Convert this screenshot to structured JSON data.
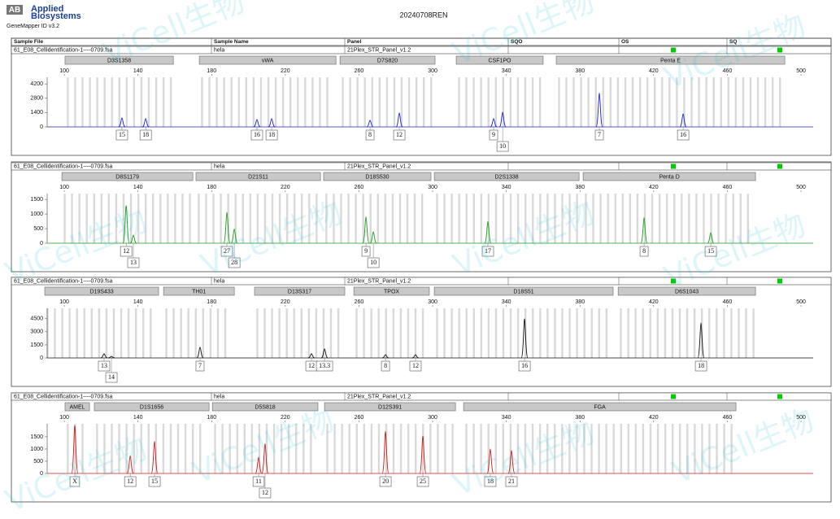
{
  "header": {
    "logo_mark": "AB",
    "brand": [
      "Applied",
      "Biosystems"
    ],
    "software": "GeneMapper ID v3.2",
    "title": "20240708REN",
    "columns": [
      "Sample File",
      "Sample Name",
      "Panel",
      "SQO",
      "OS",
      "SQ"
    ]
  },
  "watermark": "ViCell生物",
  "chart_data": [
    {
      "type": "electropherogram",
      "sample_file": "61_E08_Cellidentification-1----0709.fsa",
      "sample_name": "hela",
      "panel": "21Plex_STR_Panel_v1.2",
      "color": "#1c1cc8",
      "xlim": [
        90.7,
        506.6
      ],
      "xticks": [
        100,
        140,
        180,
        220,
        260,
        300,
        340,
        380,
        420,
        460,
        500
      ],
      "ylim": [
        0,
        4850
      ],
      "yticks": [
        0,
        1400,
        2800,
        4200
      ],
      "markers": [
        {
          "name": "D3S1358",
          "start": 100.4,
          "end": 159.2
        },
        {
          "name": "vWA",
          "start": 173.3,
          "end": 247.5
        },
        {
          "name": "D7S820",
          "start": 249.7,
          "end": 301.3
        },
        {
          "name": "CSF1PO",
          "start": 312.8,
          "end": 360
        },
        {
          "name": "Penta E",
          "start": 367.1,
          "end": 491.2
        }
      ],
      "sizes": [
        131.3,
        144.2,
        204.6,
        212.6,
        266,
        281.9,
        333.1,
        338,
        390.5,
        436
      ],
      "heights": [
        890,
        810,
        730,
        810,
        650,
        1370,
        810,
        1450,
        3310,
        1290
      ],
      "alleles": [
        "15",
        "18",
        "16",
        "18",
        "8",
        "12",
        "9",
        "10",
        "7",
        "16"
      ]
    },
    {
      "type": "electropherogram",
      "sample_file": "61_E08_Cellidentification-1----0709.fsa",
      "sample_name": "hela",
      "panel": "21Plex_STR_Panel_v1.2",
      "color": "#1a9a1a",
      "xlim": [
        90.7,
        506.6
      ],
      "xticks": [
        100,
        140,
        180,
        220,
        260,
        300,
        340,
        380,
        420,
        460,
        500
      ],
      "ylim": [
        0,
        1700
      ],
      "yticks": [
        0,
        500,
        1000,
        1500
      ],
      "markers": [
        {
          "name": "D8S1179",
          "start": 98.7,
          "end": 169.8
        },
        {
          "name": "D21S11",
          "start": 171.5,
          "end": 239.1
        },
        {
          "name": "D18S530",
          "start": 240.8,
          "end": 299.1
        },
        {
          "name": "D2S1338",
          "start": 300.9,
          "end": 379.5
        },
        {
          "name": "Penta D",
          "start": 381.7,
          "end": 475.3
        }
      ],
      "sizes": [
        133.6,
        137.5,
        188.3,
        192.3,
        263.8,
        267.8,
        330,
        414.8,
        451
      ],
      "heights": [
        1290,
        280,
        1060,
        490,
        905,
        390,
        750,
        880,
        360
      ],
      "alleles": [
        "12",
        "13",
        "27",
        "28",
        "9",
        "10",
        "17",
        "8",
        "15"
      ]
    },
    {
      "type": "electropherogram",
      "sample_file": "61_E08_Cellidentification-1----0709.fsa",
      "sample_name": "hela",
      "panel": "21Plex_STR_Panel_v1.2",
      "color": "#111111",
      "xlim": [
        90.7,
        506.6
      ],
      "xticks": [
        100,
        140,
        180,
        220,
        260,
        300,
        340,
        380,
        420,
        460,
        500
      ],
      "ylim": [
        0,
        5700
      ],
      "yticks": [
        0,
        1500,
        3000,
        4500
      ],
      "markers": [
        {
          "name": "D19S433",
          "start": 89.4,
          "end": 151.2
        },
        {
          "name": "TH01",
          "start": 153.9,
          "end": 192.3
        },
        {
          "name": "D13S317",
          "start": 203.3,
          "end": 252.3
        },
        {
          "name": "TPOX",
          "start": 257.2,
          "end": 298.2
        },
        {
          "name": "D18S51",
          "start": 300.9,
          "end": 398
        },
        {
          "name": "D6S1043",
          "start": 400.7,
          "end": 475.3
        }
      ],
      "sizes": [
        121.6,
        125.6,
        173.7,
        234.2,
        241.3,
        274.4,
        290.7,
        349.9,
        445.7
      ],
      "heights": [
        480,
        190,
        1245,
        480,
        1050,
        380,
        380,
        4500,
        4020
      ],
      "alleles": [
        "13",
        "14",
        "7",
        "12",
        "13.3",
        "8",
        "12",
        "16",
        "18"
      ]
    },
    {
      "type": "electropherogram",
      "sample_file": "61_E08_Cellidentification-1----0709.fsa",
      "sample_name": "hela",
      "panel": "21Plex_STR_Panel_v1.2",
      "color": "#d01818",
      "xlim": [
        90.7,
        506.6
      ],
      "xticks": [
        100,
        140,
        180,
        220,
        260,
        300,
        340,
        380,
        420,
        460,
        500
      ],
      "ylim": [
        0,
        2030
      ],
      "yticks": [
        0,
        500,
        1000,
        1500
      ],
      "markers": [
        {
          "name": "AMEL",
          "start": 100.4,
          "end": 113.7
        },
        {
          "name": "D1S1656",
          "start": 116.3,
          "end": 178.6
        },
        {
          "name": "D5S818",
          "start": 180.4,
          "end": 237.7
        },
        {
          "name": "D12S391",
          "start": 241.3,
          "end": 312.4
        },
        {
          "name": "FGA",
          "start": 316.8,
          "end": 464.7
        }
      ],
      "sizes": [
        105.7,
        135.8,
        149,
        205.5,
        209,
        274.4,
        294.7,
        331.3,
        342.8
      ],
      "heights": [
        1960,
        720,
        1310,
        660,
        1220,
        1720,
        1530,
        1000,
        940
      ],
      "alleles": [
        "X",
        "12",
        "15",
        "11",
        "12",
        "20",
        "25",
        "18",
        "21"
      ]
    }
  ]
}
